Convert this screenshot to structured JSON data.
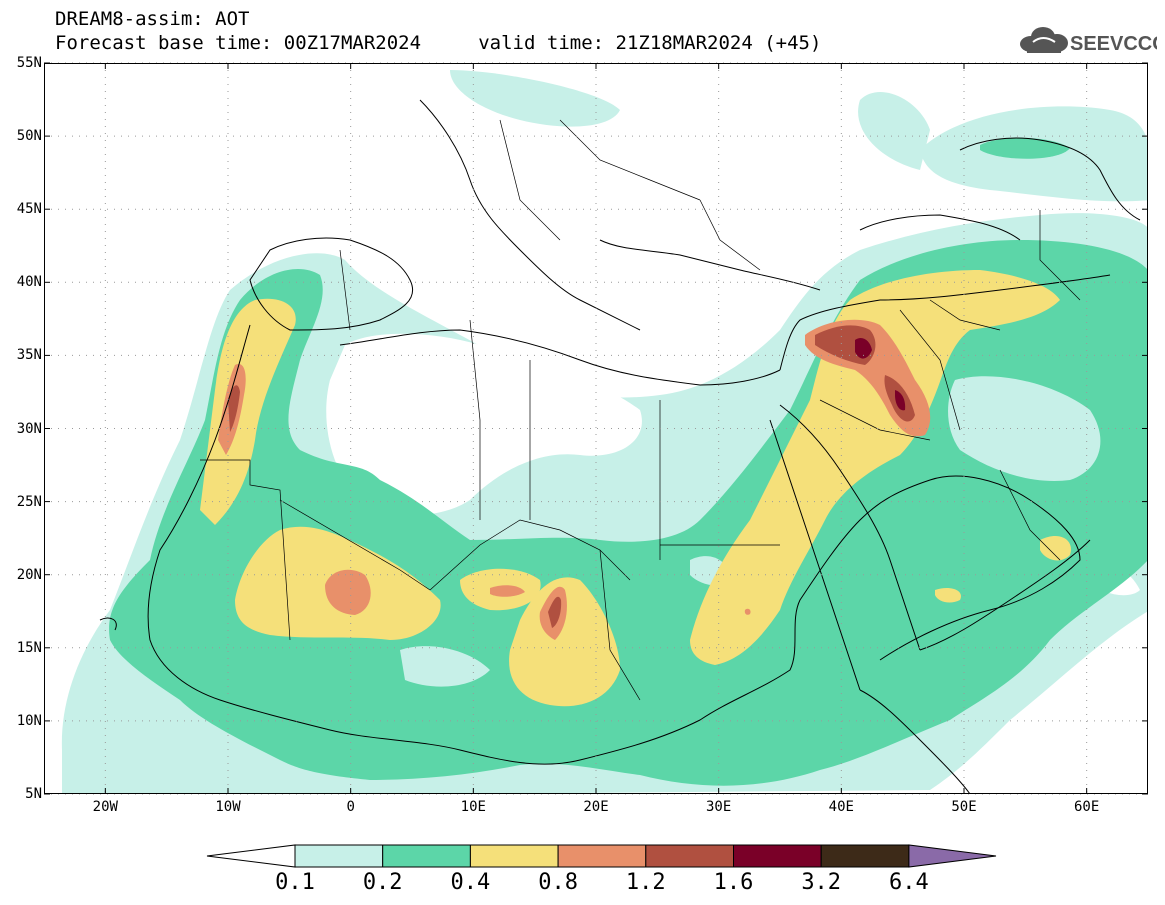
{
  "header": {
    "title_line1": "DREAM8-assim: AOT",
    "title_line2": "Forecast base time: 00Z17MAR2024     valid time: 21Z18MAR2024 (+45)",
    "logo_text": "SEEVCCC",
    "logo_icon": "cloud-icon"
  },
  "map": {
    "projection": "lat-lon",
    "lon_range": [
      -25,
      65
    ],
    "lat_range": [
      5,
      55
    ],
    "grid": "dotted",
    "lat_labels": [
      "55N",
      "50N",
      "45N",
      "40N",
      "35N",
      "30N",
      "25N",
      "20N",
      "15N",
      "10N",
      "5N"
    ],
    "lon_labels": [
      "20W",
      "10W",
      "0",
      "10E",
      "20E",
      "30E",
      "40E",
      "50E",
      "60E"
    ]
  },
  "legend": {
    "levels": [
      "0.1",
      "0.2",
      "0.4",
      "0.8",
      "1.2",
      "1.6",
      "3.2",
      "6.4"
    ],
    "colors": [
      "#ffffff",
      "#c7f0e8",
      "#5cd6a8",
      "#f5e07a",
      "#e8906a",
      "#b05040",
      "#7a0028",
      "#3d2a18",
      "#8a6aa8"
    ]
  }
}
